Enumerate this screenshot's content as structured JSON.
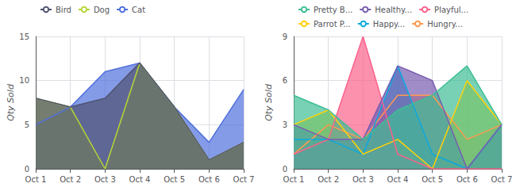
{
  "chart_data": [
    {
      "type": "area",
      "ylabel": "Qty Sold",
      "categories": [
        "Oct 1",
        "Oct 2",
        "Oct 3",
        "Oct 4",
        "Oct 5",
        "Oct 6",
        "Oct 7"
      ],
      "series": [
        {
          "name": "Bird",
          "values": [
            8,
            7,
            8,
            12,
            7,
            1,
            3
          ]
        },
        {
          "name": "Dog",
          "values": [
            8,
            7,
            0,
            12,
            7,
            1,
            3
          ]
        },
        {
          "name": "Cat",
          "values": [
            5,
            7,
            11,
            12,
            7,
            3,
            9
          ]
        }
      ],
      "ylim": [
        0,
        15
      ],
      "yticks": [
        0,
        5,
        10,
        15
      ],
      "grid": true,
      "legend": "upper left"
    },
    {
      "type": "area",
      "ylabel": "Qty Sold",
      "categories": [
        "Oct 1",
        "Oct 2",
        "Oct 3",
        "Oct 4",
        "Oct 5",
        "Oct 6",
        "Oct 7"
      ],
      "series": [
        {
          "name": "Pretty B...",
          "values": [
            5,
            4,
            2,
            4,
            5,
            7,
            3
          ]
        },
        {
          "name": "Healthy...",
          "values": [
            3,
            2,
            2,
            7,
            6,
            0,
            3
          ]
        },
        {
          "name": "Playful...",
          "values": [
            1,
            2,
            9,
            1,
            0,
            0,
            0
          ]
        },
        {
          "name": "Parrot P...",
          "values": [
            3,
            4,
            1,
            2,
            0,
            6,
            3
          ]
        },
        {
          "name": "Happy...",
          "values": [
            2,
            2,
            1,
            7,
            1,
            0,
            3
          ]
        },
        {
          "name": "Hungry...",
          "values": [
            1,
            3,
            2,
            5,
            5,
            2,
            3
          ]
        }
      ],
      "ylim": [
        0,
        9
      ],
      "yticks": [
        0,
        3,
        6,
        9
      ],
      "grid": true,
      "legend": "upper left"
    }
  ]
}
